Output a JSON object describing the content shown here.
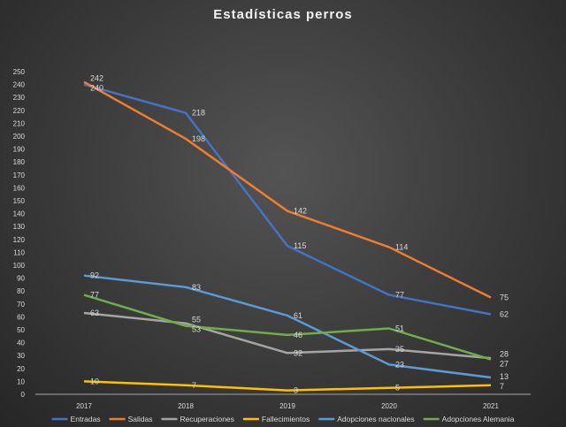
{
  "chart_data": {
    "type": "line",
    "title": "Estadísticas perros",
    "xlabel": "",
    "ylabel": "",
    "categories": [
      "2017",
      "2018",
      "2019",
      "2020",
      "2021"
    ],
    "ylim": [
      0,
      250
    ],
    "yticks": [
      0,
      10,
      20,
      30,
      40,
      50,
      60,
      70,
      80,
      90,
      100,
      110,
      120,
      130,
      140,
      150,
      160,
      170,
      180,
      190,
      200,
      210,
      220,
      230,
      240,
      250
    ],
    "grid": false,
    "legend": "bottom",
    "series": [
      {
        "name": "Entradas",
        "color": "#4472C4",
        "values": [
          240,
          218,
          115,
          77,
          62
        ]
      },
      {
        "name": "Salidas",
        "color": "#ED7D31",
        "values": [
          242,
          198,
          142,
          114,
          75
        ]
      },
      {
        "name": "Recuperaciones",
        "color": "#A5A5A5",
        "values": [
          63,
          55,
          32,
          35,
          28
        ]
      },
      {
        "name": "Fallecimientos",
        "color": "#FFC000",
        "values": [
          10,
          7,
          3,
          5,
          7
        ]
      },
      {
        "name": "Adopciones nacionales",
        "color": "#5B9BD5",
        "values": [
          92,
          83,
          61,
          23,
          13
        ]
      },
      {
        "name": "Adopciones Alemania",
        "color": "#70AD47",
        "values": [
          77,
          53,
          46,
          51,
          27
        ]
      }
    ]
  }
}
